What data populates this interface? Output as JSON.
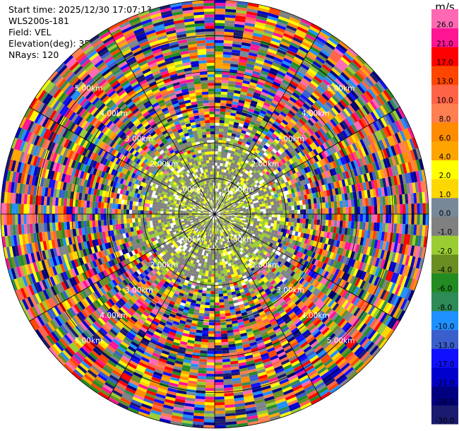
{
  "header": {
    "start_time": "Start time: 2025/12/30 17:07:13",
    "instrument": "WLS200s-181",
    "field": "Field: VEL",
    "elevation": "Elevation(deg): 35.00",
    "nrays": "NRays: 120"
  },
  "chart_data": {
    "type": "heatmap",
    "projection": "polar-ppi",
    "range_max_km": 6.0,
    "range_ring_interval_km": 1.0,
    "n_rays": 120,
    "range_ring_labels": [
      {
        "angle_deg": 45,
        "labels": [
          "1.00km",
          "2.00km",
          "3.00km",
          "4.00km",
          "5.00km"
        ]
      },
      {
        "angle_deg": 135,
        "labels": [
          "1.00km",
          "2.00km",
          "3.00km",
          "4.00km",
          "5.00km"
        ]
      },
      {
        "angle_deg": 225,
        "labels": [
          "1.00km",
          "2.00km",
          "3.00km",
          "4.00km",
          "5.00km"
        ]
      },
      {
        "angle_deg": 315,
        "labels": [
          "1.00km",
          "2.00km",
          "3.00km",
          "4.00km",
          "5.00km"
        ]
      }
    ],
    "colorbar": {
      "unit": "m/s",
      "boundaries": [
        -30,
        -26,
        -21,
        -17,
        -13,
        -10,
        -8,
        -6,
        -4,
        -2,
        -1,
        0,
        1,
        2,
        4,
        6,
        8,
        10,
        13,
        17,
        21,
        26,
        30
      ],
      "tick_labels": [
        "26.0",
        "21.0",
        "17.0",
        "13.0",
        "10.0",
        "8.0",
        "6.0",
        "4.0",
        "2.0",
        "1.0",
        "0.0",
        "-1.0",
        "-2.0",
        "-4.0",
        "-6.0",
        "-8.0",
        "-10.0",
        "-13.0",
        "-17.0",
        "-21.0",
        "-26.0",
        "-30.0"
      ],
      "colors": [
        "#1a1a6e",
        "#000080",
        "#0000cd",
        "#1010ff",
        "#3a5fcd",
        "#1e90ff",
        "#2e8b57",
        "#228b22",
        "#6b8e23",
        "#9acd32",
        "#808080",
        "#778899",
        "#ffd700",
        "#ffff00",
        "#ffa500",
        "#ff8c00",
        "#ff7f50",
        "#ff6347",
        "#ff4500",
        "#ff0000",
        "#ff1493",
        "#ff69b4"
      ]
    },
    "near_field_description_values": {
      "mostly_between": [
        -2,
        2
      ],
      "dominant_colors": [
        "#808080",
        "#9acd32",
        "#ffff00"
      ]
    }
  }
}
